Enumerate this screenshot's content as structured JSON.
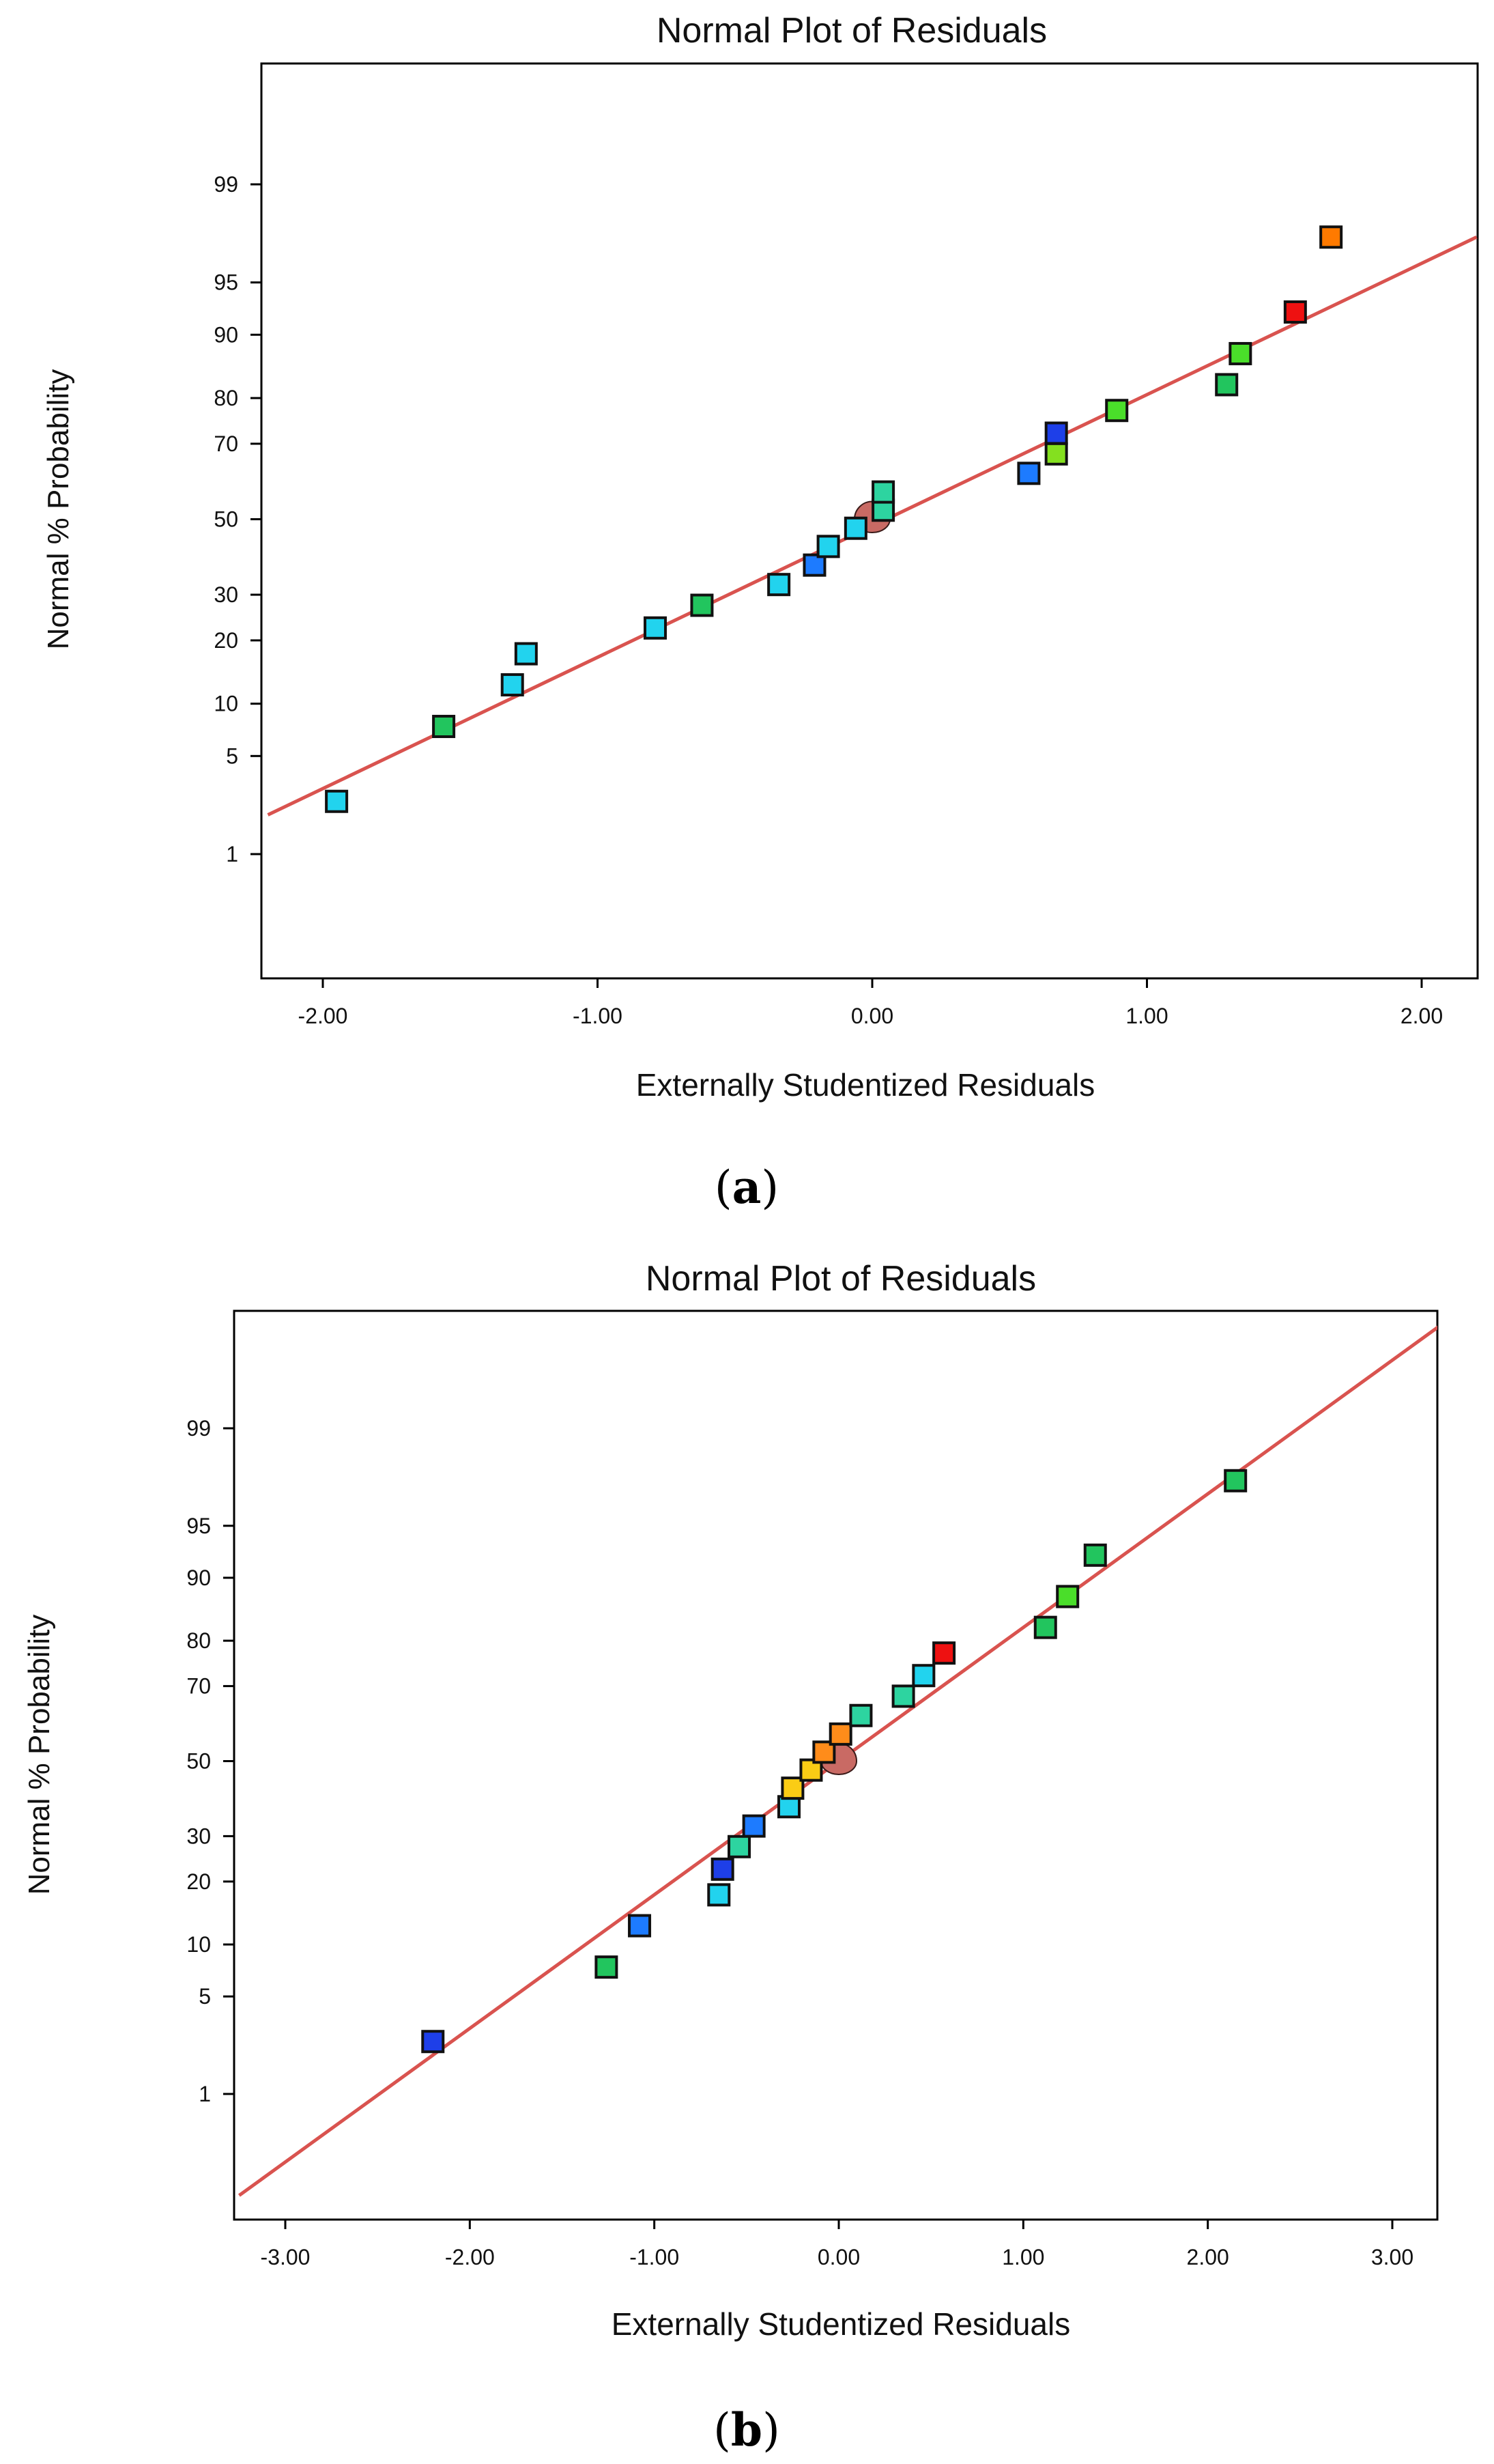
{
  "colors": {
    "fit_line": "#D9534F",
    "frame": "#000000",
    "text": "#111111",
    "center_marker": "#C96A64"
  },
  "panels": [
    {
      "label_open": "(",
      "label_letter": "a",
      "label_close": ")"
    },
    {
      "label_open": "(",
      "label_letter": "b",
      "label_close": ")"
    }
  ],
  "chart_data": [
    {
      "type": "scatter",
      "title": "Normal Plot of Residuals",
      "xlabel": "Externally Studentized Residuals",
      "ylabel": "Normal % Probability",
      "xlim": [
        -2.2,
        2.2
      ],
      "x_ticks": [
        -2.0,
        -1.0,
        0.0,
        1.0,
        2.0
      ],
      "x_tick_labels": [
        "-2.00",
        "-1.00",
        "0.00",
        "1.00",
        "2.00"
      ],
      "y_ticks": [
        1,
        5,
        10,
        20,
        30,
        50,
        70,
        80,
        90,
        95,
        99
      ],
      "y_tick_labels": [
        "1",
        "5",
        "10",
        "20",
        "30",
        "50",
        "70",
        "80",
        "90",
        "95",
        "99"
      ],
      "y_scale": "normal-probability",
      "fit_line": {
        "x_start": -2.2,
        "y_start": 2.0,
        "x_end": 2.2,
        "y_end": 97.5
      },
      "center_point": {
        "x": 0.0,
        "y": 50
      },
      "points": [
        {
          "x": -1.95,
          "y": 2.5,
          "color": "#22D3EE"
        },
        {
          "x": -1.56,
          "y": 7.5,
          "color": "#22C55E"
        },
        {
          "x": -1.31,
          "y": 12.5,
          "color": "#22D3EE"
        },
        {
          "x": -1.26,
          "y": 17.5,
          "color": "#22D3EE"
        },
        {
          "x": -0.79,
          "y": 22.5,
          "color": "#22D3EE"
        },
        {
          "x": -0.62,
          "y": 27.5,
          "color": "#22C55E"
        },
        {
          "x": -0.34,
          "y": 32.5,
          "color": "#22D3EE"
        },
        {
          "x": -0.21,
          "y": 37.5,
          "color": "#1D7BFF"
        },
        {
          "x": -0.16,
          "y": 42.5,
          "color": "#22D3EE"
        },
        {
          "x": -0.06,
          "y": 47.5,
          "color": "#22D3EE"
        },
        {
          "x": 0.04,
          "y": 52.5,
          "color": "#2DD4A0"
        },
        {
          "x": 0.04,
          "y": 57.5,
          "color": "#2DD4A0"
        },
        {
          "x": 0.57,
          "y": 62.5,
          "color": "#1D7BFF"
        },
        {
          "x": 0.67,
          "y": 67.5,
          "color": "#84E01F"
        },
        {
          "x": 0.67,
          "y": 72.5,
          "color": "#1E3FE8"
        },
        {
          "x": 0.89,
          "y": 77.5,
          "color": "#4ADE2A"
        },
        {
          "x": 1.29,
          "y": 82.5,
          "color": "#22C55E"
        },
        {
          "x": 1.34,
          "y": 87.5,
          "color": "#4ADE2A"
        },
        {
          "x": 1.54,
          "y": 92.5,
          "color": "#EE1111"
        },
        {
          "x": 1.67,
          "y": 97.5,
          "color": "#FF7A00"
        }
      ]
    },
    {
      "type": "scatter",
      "title": "Normal Plot of Residuals",
      "xlabel": "Externally Studentized Residuals",
      "ylabel": "Normal % Probability",
      "xlim": [
        -3.3,
        3.3
      ],
      "x_ticks": [
        -3.0,
        -2.0,
        -1.0,
        0.0,
        1.0,
        2.0,
        3.0
      ],
      "x_tick_labels": [
        "-3.00",
        "-2.00",
        "-1.00",
        "0.00",
        "1.00",
        "2.00",
        "3.00"
      ],
      "y_ticks": [
        1,
        5,
        10,
        20,
        30,
        50,
        70,
        80,
        90,
        95,
        99
      ],
      "y_tick_labels": [
        "1",
        "5",
        "10",
        "20",
        "30",
        "50",
        "70",
        "80",
        "90",
        "95",
        "99"
      ],
      "y_scale": "normal-probability",
      "fit_line": {
        "x_start": -3.25,
        "y_start": 0.12,
        "x_end": 3.25,
        "y_end": 99.88
      },
      "center_point": {
        "x": 0.0,
        "y": 50
      },
      "points": [
        {
          "x": -2.2,
          "y": 2.5,
          "color": "#1E3FE8"
        },
        {
          "x": -1.26,
          "y": 7.5,
          "color": "#22C55E"
        },
        {
          "x": -1.08,
          "y": 12.5,
          "color": "#1D7BFF"
        },
        {
          "x": -0.65,
          "y": 17.5,
          "color": "#22D3EE"
        },
        {
          "x": -0.63,
          "y": 22.5,
          "color": "#1E3FE8"
        },
        {
          "x": -0.54,
          "y": 27.5,
          "color": "#2DD4A0"
        },
        {
          "x": -0.46,
          "y": 32.5,
          "color": "#1D7BFF"
        },
        {
          "x": -0.27,
          "y": 37.5,
          "color": "#22D3EE"
        },
        {
          "x": -0.25,
          "y": 42.5,
          "color": "#FACC15"
        },
        {
          "x": -0.15,
          "y": 47.5,
          "color": "#FACC15"
        },
        {
          "x": -0.08,
          "y": 52.5,
          "color": "#FF8C1A"
        },
        {
          "x": 0.01,
          "y": 57.5,
          "color": "#FF8C1A"
        },
        {
          "x": 0.12,
          "y": 62.5,
          "color": "#2DD4A0"
        },
        {
          "x": 0.35,
          "y": 67.5,
          "color": "#2DD4A0"
        },
        {
          "x": 0.46,
          "y": 72.5,
          "color": "#22D3EE"
        },
        {
          "x": 0.57,
          "y": 77.5,
          "color": "#EE1111"
        },
        {
          "x": 1.12,
          "y": 82.5,
          "color": "#22C55E"
        },
        {
          "x": 1.24,
          "y": 87.5,
          "color": "#4ADE2A"
        },
        {
          "x": 1.39,
          "y": 92.5,
          "color": "#22C55E"
        },
        {
          "x": 2.15,
          "y": 97.5,
          "color": "#22C55E"
        }
      ]
    }
  ]
}
